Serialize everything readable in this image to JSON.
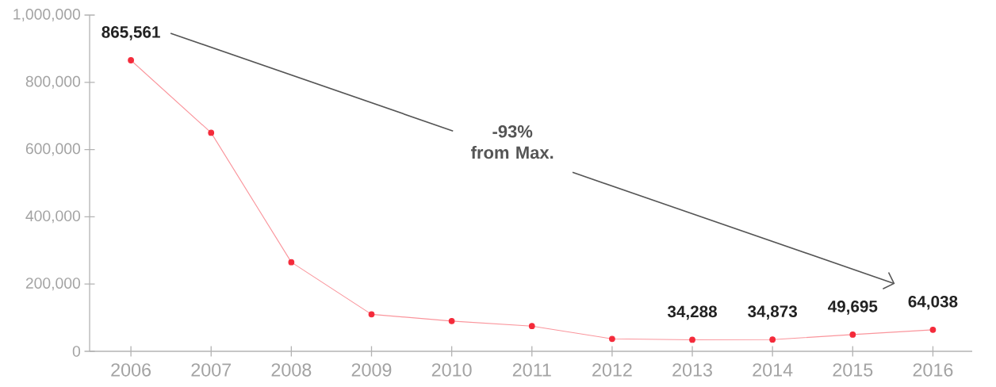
{
  "chart_data": {
    "type": "line",
    "categories": [
      "2006",
      "2007",
      "2008",
      "2009",
      "2010",
      "2011",
      "2012",
      "2013",
      "2014",
      "2015",
      "2016"
    ],
    "values": [
      865561,
      650000,
      265000,
      110000,
      90000,
      75000,
      37000,
      34288,
      34873,
      49695,
      64038
    ],
    "value_labels": [
      "865,561",
      null,
      null,
      null,
      null,
      null,
      null,
      "34,288",
      "34,873",
      "49,695",
      "64,038"
    ],
    "color": "#f42a3a",
    "marker": "circle",
    "line_style": "solid",
    "ylim": [
      0,
      1000000
    ],
    "yticks": [
      0,
      {
        "value": 200000,
        "label": "200,000"
      },
      {
        "value": 400000,
        "label": "400,000"
      },
      {
        "value": 600000,
        "label": "600,000"
      },
      {
        "value": 800000,
        "label": "800,000"
      },
      {
        "value": 1000000,
        "label": "1,000,000"
      }
    ],
    "annotations": [
      "-93% from Max."
    ]
  }
}
